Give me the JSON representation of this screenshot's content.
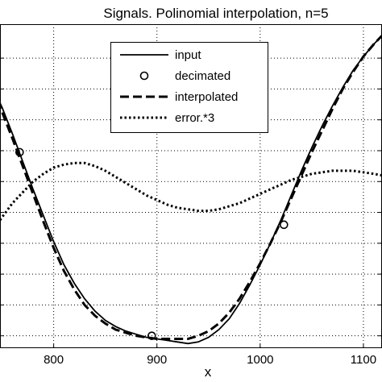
{
  "chart_data": {
    "type": "line",
    "title": "Signals. Polinomial interpolation, n=5",
    "xlabel": "x",
    "ylabel": "",
    "xlim": [
      748,
      1118
    ],
    "ylim": [
      -1.08,
      1.02
    ],
    "grid": true,
    "legend_placement": "top-center",
    "x_ticks": [
      800,
      900,
      1000,
      1100
    ],
    "x_tick_labels": [
      "800",
      "900",
      "1000",
      "1100"
    ],
    "y_ticks": [
      -1.0,
      -0.8,
      -0.6,
      -0.4,
      -0.2,
      0.0,
      0.2,
      0.4,
      0.6,
      0.8
    ],
    "series": [
      {
        "name": "input",
        "style": "solid",
        "x": [
          740,
          750,
          760,
          770,
          780,
          790,
          800,
          810,
          820,
          830,
          840,
          850,
          860,
          870,
          880,
          890,
          900,
          910,
          920,
          930,
          940,
          950,
          960,
          970,
          980,
          990,
          1000,
          1010,
          1020,
          1030,
          1040,
          1050,
          1060,
          1070,
          1080,
          1090,
          1100,
          1110,
          1120
        ],
        "y": [
          0.63,
          0.48,
          0.31,
          0.13,
          -0.05,
          -0.22,
          -0.39,
          -0.54,
          -0.66,
          -0.76,
          -0.84,
          -0.9,
          -0.94,
          -0.97,
          -0.99,
          -1.01,
          -1.02,
          -1.03,
          -1.04,
          -1.05,
          -1.04,
          -1.01,
          -0.96,
          -0.89,
          -0.79,
          -0.67,
          -0.54,
          -0.4,
          -0.25,
          -0.09,
          0.07,
          0.22,
          0.36,
          0.49,
          0.61,
          0.72,
          0.81,
          0.89,
          0.96
        ]
      },
      {
        "name": "decimated",
        "style": "circle",
        "x": [
          767,
          895,
          1023
        ],
        "y": [
          0.19,
          -1.0,
          -0.28
        ]
      },
      {
        "name": "interpolated",
        "style": "dashed",
        "x": [
          740,
          750,
          760,
          770,
          780,
          790,
          800,
          810,
          820,
          830,
          840,
          850,
          860,
          870,
          880,
          890,
          900,
          910,
          920,
          930,
          940,
          950,
          960,
          970,
          980,
          990,
          1000,
          1010,
          1020,
          1030,
          1040,
          1050,
          1060,
          1070,
          1080,
          1090,
          1100,
          1110,
          1120
        ],
        "y": [
          0.6,
          0.45,
          0.28,
          0.1,
          -0.08,
          -0.26,
          -0.43,
          -0.58,
          -0.7,
          -0.8,
          -0.87,
          -0.92,
          -0.96,
          -0.98,
          -1.0,
          -1.01,
          -1.02,
          -1.02,
          -1.02,
          -1.02,
          -1.0,
          -0.97,
          -0.92,
          -0.85,
          -0.76,
          -0.65,
          -0.53,
          -0.4,
          -0.26,
          -0.11,
          0.04,
          0.19,
          0.33,
          0.47,
          0.6,
          0.71,
          0.81,
          0.89,
          0.96
        ]
      },
      {
        "name": "error.*3",
        "style": "dotted",
        "x": [
          748,
          760,
          770,
          780,
          790,
          800,
          810,
          820,
          830,
          840,
          850,
          860,
          870,
          880,
          890,
          900,
          910,
          920,
          930,
          940,
          950,
          960,
          970,
          980,
          990,
          1000,
          1010,
          1020,
          1030,
          1040,
          1050,
          1060,
          1070,
          1080,
          1090,
          1100,
          1110,
          1118
        ],
        "y": [
          -0.25,
          -0.14,
          -0.07,
          0.0,
          0.05,
          0.09,
          0.11,
          0.12,
          0.12,
          0.1,
          0.07,
          0.03,
          -0.01,
          -0.05,
          -0.09,
          -0.12,
          -0.15,
          -0.17,
          -0.18,
          -0.19,
          -0.19,
          -0.18,
          -0.16,
          -0.14,
          -0.11,
          -0.08,
          -0.05,
          -0.02,
          0.01,
          0.03,
          0.05,
          0.06,
          0.07,
          0.07,
          0.07,
          0.06,
          0.05,
          0.04
        ]
      }
    ]
  }
}
